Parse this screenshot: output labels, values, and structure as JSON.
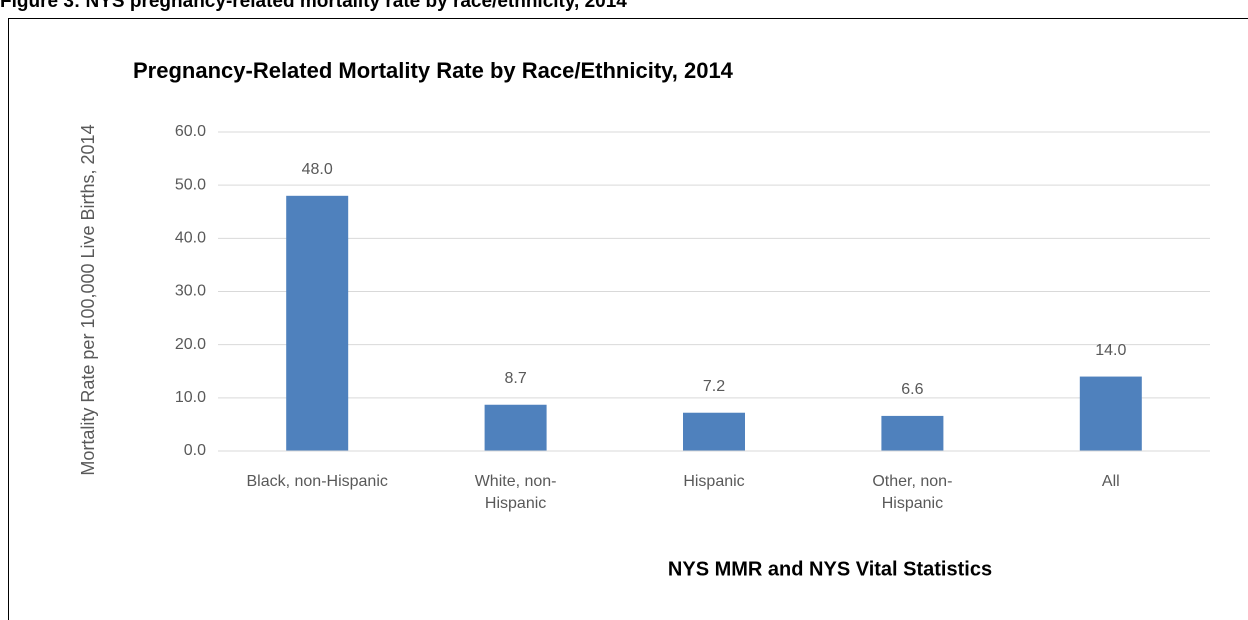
{
  "heading": "Figure 3: NYS pregnancy-related mortality rate by race/ethnicity, 2014",
  "chart_data": {
    "type": "bar",
    "title": "Pregnancy-Related Mortality Rate by Race/Ethnicity, 2014",
    "y_label": "Mortality Rate per 100,000 Live Births, 2014",
    "x_label": "NYS MMR and NYS Vital Statistics",
    "categories": [
      "Black, non-Hispanic",
      "White, non-Hispanic",
      "Hispanic",
      "Other, non-Hispanic",
      "All"
    ],
    "values": [
      48,
      8.7,
      7.2,
      6.6,
      14
    ],
    "value_labels": [
      "48.0",
      "8.7",
      "7.2",
      "6.6",
      "14.0"
    ],
    "color": "#4f81bd",
    "ylim": [
      0,
      60
    ],
    "yticks": [
      {
        "value": 0,
        "label": "0.0"
      },
      {
        "value": 10,
        "label": "10.0"
      },
      {
        "value": 20,
        "label": "20.0"
      },
      {
        "value": 30,
        "label": "30.0"
      },
      {
        "value": 40,
        "label": "40.0"
      },
      {
        "value": 50,
        "label": "50.0"
      },
      {
        "value": 60,
        "label": "60.0"
      }
    ],
    "grid": true
  }
}
